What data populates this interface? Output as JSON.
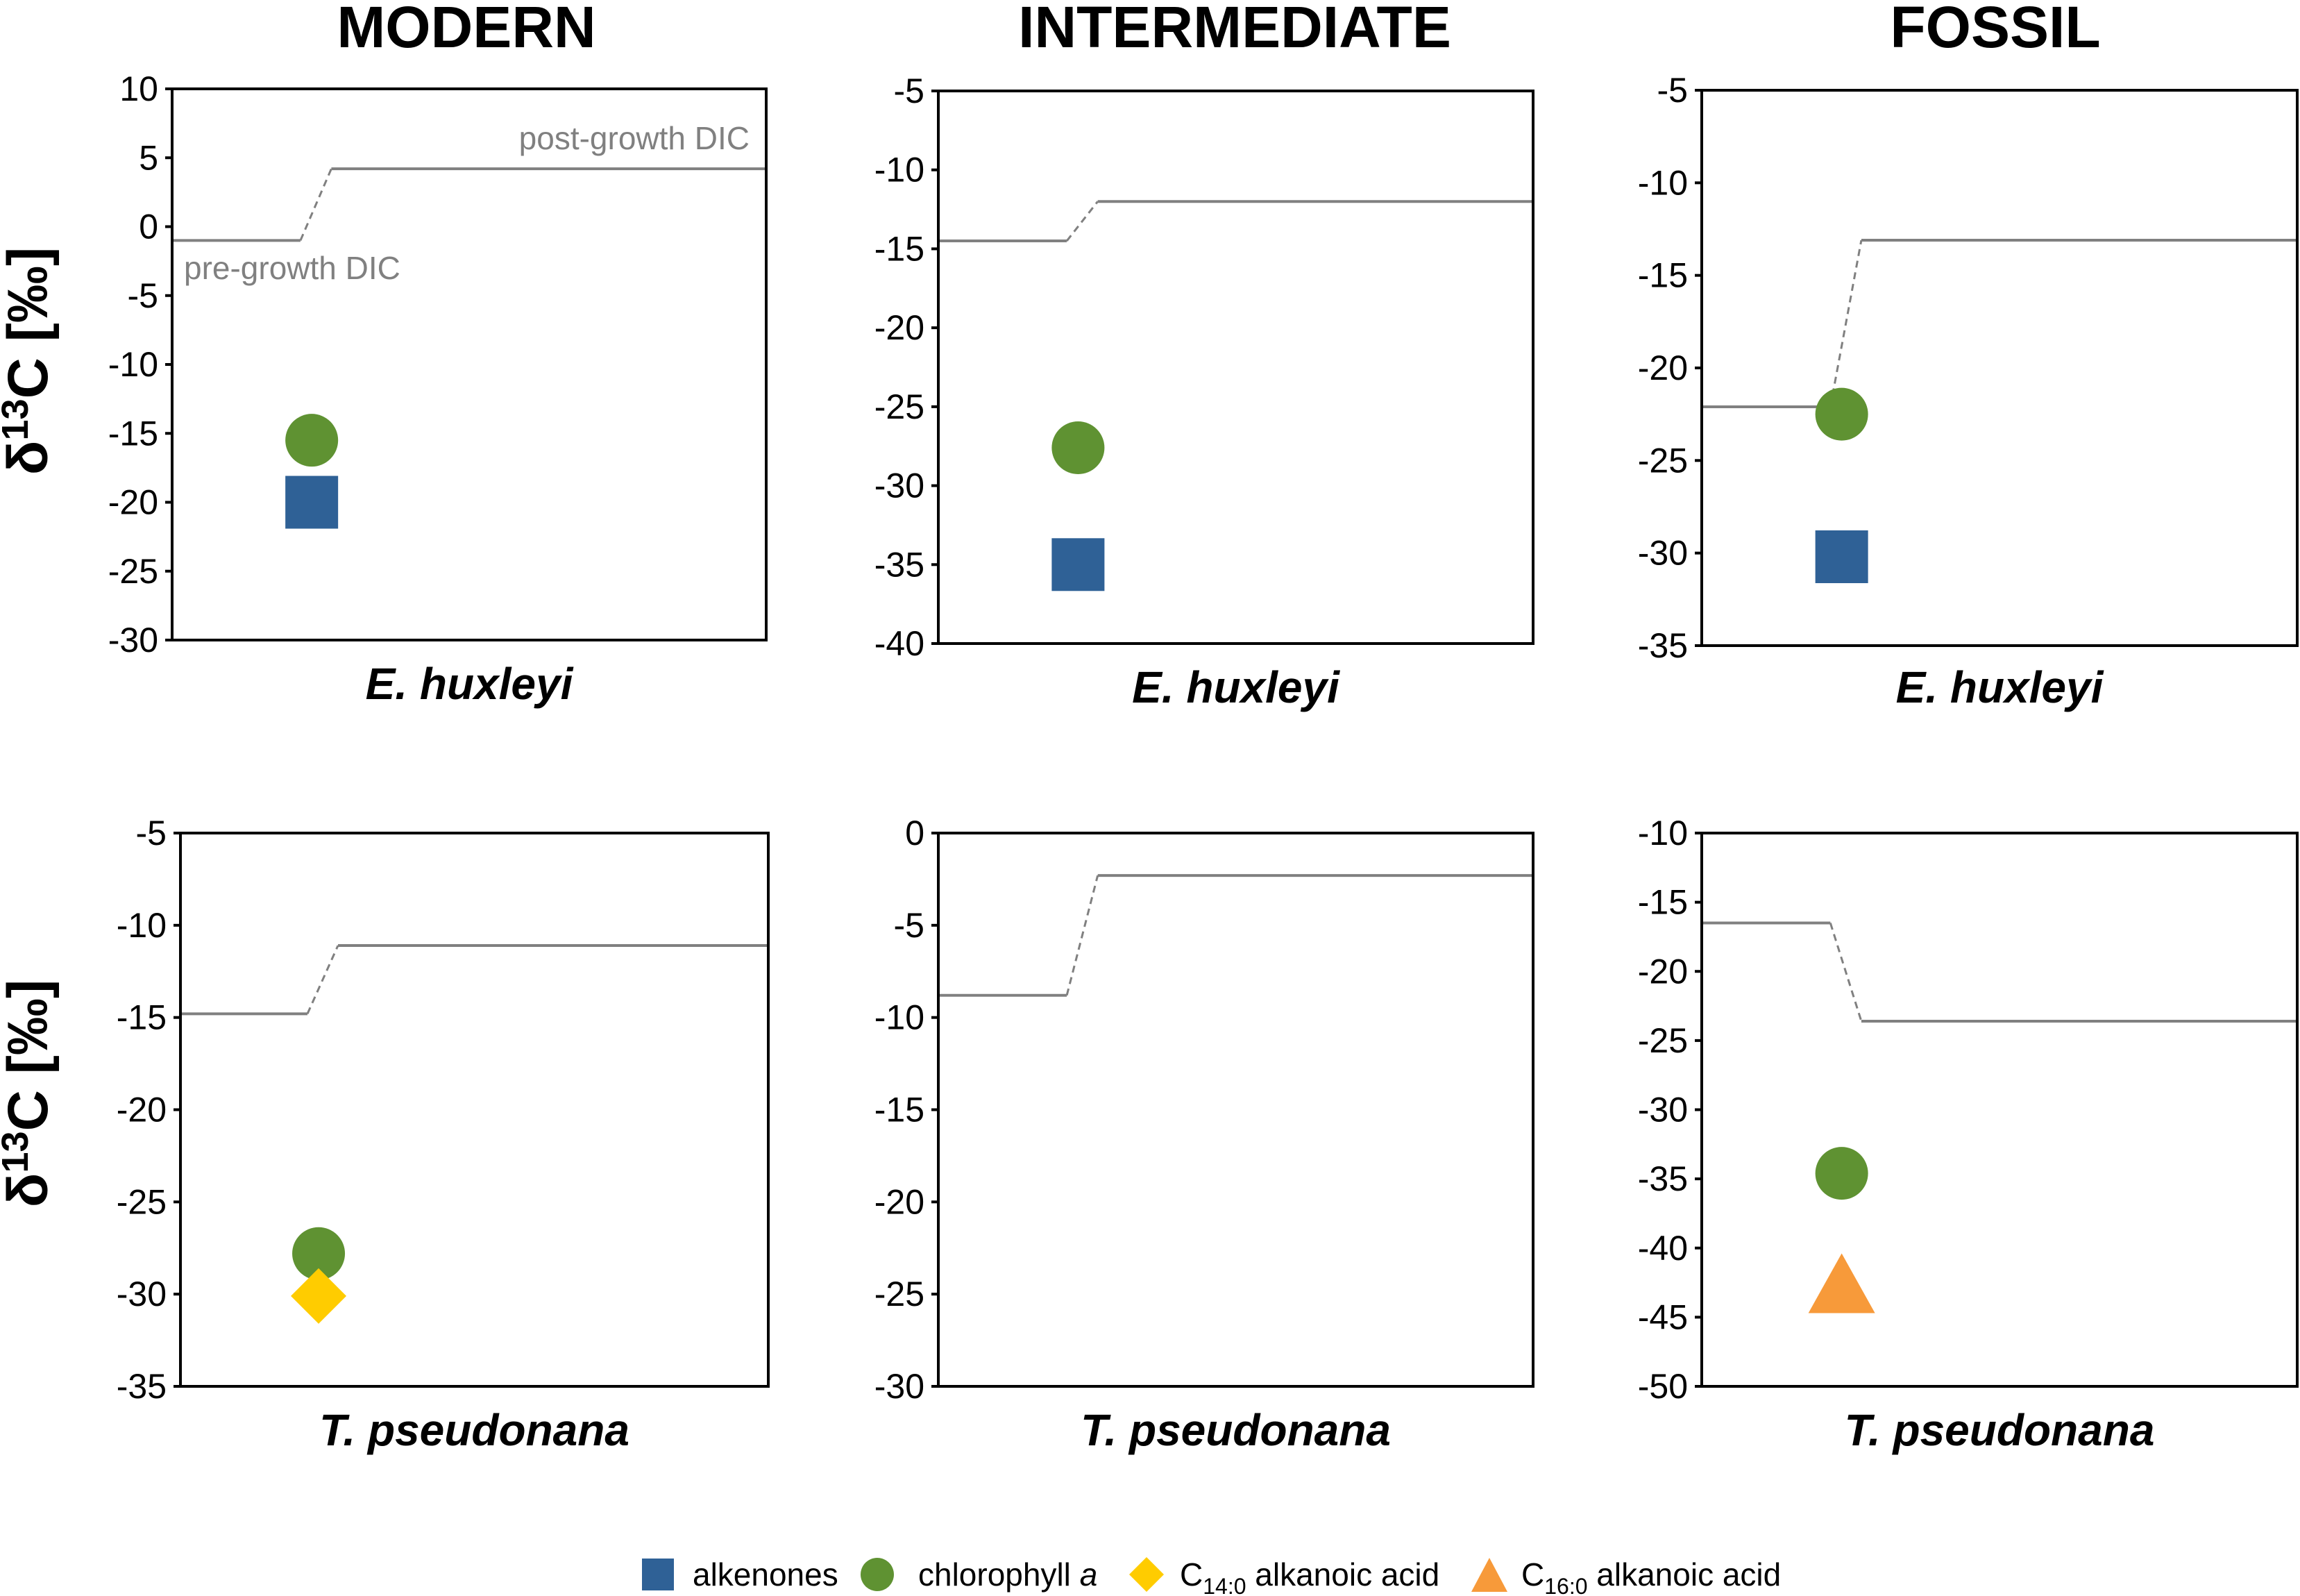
{
  "colors": {
    "alkenones": "#2f6196",
    "chlorophyll": "#5f9232",
    "c14": "#ffcc00",
    "c16": "#f79a3a",
    "dic": "#808080"
  },
  "columns": [
    "MODERN",
    "INTERMEDIATE",
    "FOSSIL"
  ],
  "ylabel": {
    "prefix": "δ",
    "sup": "13",
    "rest": "C [‰]"
  },
  "dic_labels": {
    "pre": "pre-growth DIC",
    "post": "post-growth DIC"
  },
  "legend": {
    "alkenones": "alkenones",
    "chlorophyll": "chlorophyll",
    "chlorophyll_italic": "a",
    "c14_prefix": "C",
    "c14_sub": "14:0",
    "c14_rest": " alkanoic acid",
    "c16_prefix": "C",
    "c16_sub": "16:0",
    "c16_rest": " alkanoic acid"
  },
  "chart_data": [
    {
      "type": "scatter",
      "column": "MODERN",
      "species": "E. huxleyi",
      "ylim": [
        -30,
        10
      ],
      "yticks": [
        "10",
        "5",
        "0",
        "-5",
        "-10",
        "-15",
        "-20",
        "-25",
        "-30"
      ],
      "dic_pre": -1.0,
      "dic_post": 4.2,
      "points": [
        {
          "series": "chlorophyll a",
          "marker": "circle",
          "y": -15.5
        },
        {
          "series": "alkenones",
          "marker": "square",
          "y": -20.0
        }
      ]
    },
    {
      "type": "scatter",
      "column": "INTERMEDIATE",
      "species": "E. huxleyi",
      "ylim": [
        -40,
        -5
      ],
      "yticks": [
        "-5",
        "-10",
        "-15",
        "-20",
        "-25",
        "-30",
        "-35",
        "-40"
      ],
      "dic_pre": -14.5,
      "dic_post": -12.0,
      "points": [
        {
          "series": "chlorophyll a",
          "marker": "circle",
          "y": -27.6
        },
        {
          "series": "alkenones",
          "marker": "square",
          "y": -35.0
        }
      ]
    },
    {
      "type": "scatter",
      "column": "FOSSIL",
      "species": "E. huxleyi",
      "ylim": [
        -35,
        -5
      ],
      "yticks": [
        "-5",
        "-10",
        "-15",
        "-20",
        "-25",
        "-30",
        "-35"
      ],
      "dic_pre": -22.1,
      "dic_post": -13.1,
      "points": [
        {
          "series": "chlorophyll a",
          "marker": "circle",
          "y": -22.5
        },
        {
          "series": "alkenones",
          "marker": "square",
          "y": -30.2
        }
      ]
    },
    {
      "type": "scatter",
      "column": "MODERN",
      "species": "T. pseudonana",
      "ylim": [
        -35,
        -5
      ],
      "yticks": [
        "-5",
        "-10",
        "-15",
        "-20",
        "-25",
        "-30",
        "-35"
      ],
      "dic_pre": -14.8,
      "dic_post": -11.1,
      "points": [
        {
          "series": "chlorophyll a",
          "marker": "circle",
          "y": -27.8
        },
        {
          "series": "C14:0 alkanoic acid",
          "marker": "diamond",
          "y": -30.1
        }
      ]
    },
    {
      "type": "scatter",
      "column": "INTERMEDIATE",
      "species": "T. pseudonana",
      "ylim": [
        -30,
        0
      ],
      "yticks": [
        "0",
        "-5",
        "-10",
        "-15",
        "-20",
        "-25",
        "-30"
      ],
      "dic_pre": -8.8,
      "dic_post": -2.3,
      "points": []
    },
    {
      "type": "scatter",
      "column": "FOSSIL",
      "species": "T. pseudonana",
      "ylim": [
        -50,
        -10
      ],
      "yticks": [
        "-10",
        "-15",
        "-20",
        "-25",
        "-30",
        "-35",
        "-40",
        "-45",
        "-50"
      ],
      "dic_pre": -16.5,
      "dic_post": -23.6,
      "points": [
        {
          "series": "chlorophyll a",
          "marker": "circle",
          "y": -34.6
        },
        {
          "series": "C16:0 alkanoic acid",
          "marker": "triangle",
          "y": -42.8
        }
      ]
    }
  ]
}
